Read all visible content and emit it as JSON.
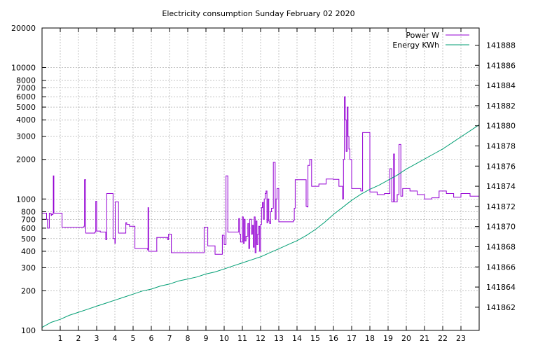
{
  "chart_data": {
    "type": "line",
    "title": "Electricity consumption Sunday February 02 2020",
    "xlabel": "",
    "ylabel": "",
    "x_ticks": [
      "1",
      "2",
      "3",
      "4",
      "5",
      "6",
      "7",
      "8",
      "9",
      "10",
      "11",
      "12",
      "13",
      "14",
      "15",
      "16",
      "17",
      "18",
      "19",
      "20",
      "21",
      "22",
      "23"
    ],
    "xlim": [
      0,
      24
    ],
    "y_left": {
      "scale": "log",
      "lim": [
        100,
        20000
      ],
      "ticks": [
        100,
        200,
        300,
        400,
        500,
        600,
        700,
        800,
        1000,
        2000,
        3000,
        4000,
        5000,
        6000,
        7000,
        8000,
        10000,
        20000
      ]
    },
    "y_right": {
      "scale": "linear",
      "lim": [
        141859.7,
        141889.7
      ],
      "ticks": [
        141862,
        141864,
        141866,
        141868,
        141870,
        141872,
        141874,
        141876,
        141878,
        141880,
        141882,
        141884,
        141886,
        141888
      ]
    },
    "grid": true,
    "legend_position": "top-right",
    "series": [
      {
        "name": "Power W",
        "axis": "left",
        "color": "#9400d3",
        "style": "steps",
        "x": [
          0,
          0.25,
          0.3,
          0.4,
          0.5,
          0.52,
          0.6,
          0.62,
          0.65,
          1.1,
          2.3,
          2.33,
          2.4,
          2.9,
          2.95,
          3.0,
          3.2,
          3.5,
          3.55,
          3.9,
          4.0,
          4.02,
          4.2,
          4.6,
          4.65,
          4.8,
          5.1,
          5.8,
          5.82,
          5.85,
          6.3,
          6.9,
          6.95,
          7.1,
          8.5,
          8.9,
          9.1,
          9.5,
          9.9,
          10.0,
          10.1,
          10.2,
          10.8,
          10.85,
          10.9,
          11.0,
          11.05,
          11.1,
          11.15,
          11.2,
          11.3,
          11.35,
          11.4,
          11.5,
          11.55,
          11.6,
          11.65,
          11.7,
          11.75,
          11.8,
          11.85,
          11.9,
          11.95,
          12.0,
          12.05,
          12.1,
          12.15,
          12.2,
          12.25,
          12.3,
          12.35,
          12.4,
          12.45,
          12.5,
          12.55,
          12.6,
          12.7,
          12.8,
          12.85,
          12.9,
          13.0,
          13.8,
          13.85,
          13.9,
          14.5,
          14.55,
          14.6,
          14.7,
          14.8,
          15.2,
          15.6,
          16.0,
          16.3,
          16.5,
          16.55,
          16.6,
          16.65,
          16.7,
          16.75,
          16.8,
          16.85,
          16.9,
          17.0,
          17.5,
          17.6,
          18.0,
          18.4,
          18.8,
          19.1,
          19.2,
          19.3,
          19.35,
          19.5,
          19.6,
          19.7,
          19.8,
          20.2,
          20.6,
          21.0,
          21.4,
          21.8,
          22.2,
          22.6,
          23.0,
          23.5,
          24.0
        ],
        "y": [
          780,
          700,
          600,
          780,
          750,
          760,
          780,
          1500,
          780,
          610,
          620,
          1400,
          550,
          560,
          960,
          570,
          560,
          490,
          1100,
          500,
          460,
          950,
          550,
          660,
          640,
          620,
          420,
          410,
          860,
          400,
          510,
          490,
          540,
          390,
          390,
          610,
          440,
          380,
          530,
          450,
          1500,
          560,
          710,
          540,
          470,
          730,
          460,
          700,
          480,
          520,
          650,
          420,
          700,
          540,
          630,
          430,
          730,
          390,
          680,
          450,
          540,
          620,
          400,
          640,
          860,
          940,
          700,
          1000,
          1100,
          1150,
          660,
          1000,
          680,
          650,
          800,
          850,
          1900,
          700,
          1000,
          1200,
          670,
          690,
          850,
          1400,
          880,
          870,
          1800,
          2000,
          1250,
          1300,
          1420,
          1410,
          1250,
          1000,
          2000,
          6000,
          4000,
          2300,
          5000,
          3000,
          2400,
          2000,
          1200,
          1150,
          3200,
          1130,
          1080,
          1100,
          1700,
          950,
          2200,
          950,
          1080,
          2600,
          1050,
          1200,
          1150,
          1080,
          1000,
          1020,
          1150,
          1100,
          1030,
          1100,
          1050,
          1050
        ]
      },
      {
        "name": "Energy KWh",
        "axis": "right",
        "color": "#009e73",
        "style": "line",
        "x": [
          0,
          0.5,
          1,
          1.5,
          2,
          2.5,
          3,
          3.5,
          4,
          4.5,
          5,
          5.5,
          6,
          6.5,
          7,
          7.5,
          8,
          8.5,
          9,
          9.5,
          10,
          10.5,
          11,
          11.5,
          12,
          12.5,
          13,
          13.5,
          14,
          14.5,
          15,
          15.5,
          16,
          16.5,
          17,
          17.5,
          18,
          18.5,
          19,
          19.5,
          20,
          20.5,
          21,
          21.5,
          22,
          22.5,
          23,
          23.5,
          24
        ],
        "y": [
          141860.0,
          141860.5,
          141860.8,
          141861.2,
          141861.5,
          141861.8,
          141862.1,
          141862.4,
          141862.7,
          141863.0,
          141863.3,
          141863.6,
          141863.8,
          141864.1,
          141864.3,
          141864.6,
          141864.8,
          141865.0,
          141865.3,
          141865.5,
          141865.8,
          141866.1,
          141866.4,
          141866.7,
          141867.0,
          141867.4,
          141867.8,
          141868.2,
          141868.6,
          141869.1,
          141869.7,
          141870.4,
          141871.2,
          141871.9,
          141872.6,
          141873.2,
          141873.7,
          141874.1,
          141874.6,
          141875.1,
          141875.7,
          141876.2,
          141876.7,
          141877.2,
          141877.7,
          141878.3,
          141878.9,
          141879.5,
          141880.1
        ]
      }
    ]
  }
}
